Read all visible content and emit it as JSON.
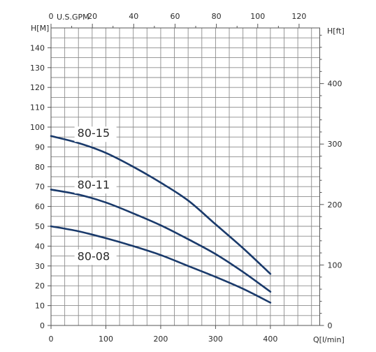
{
  "chart_data": {
    "type": "line",
    "title": "",
    "xlabel": "Q[l/min]",
    "ylabel": "H[M]",
    "ylabel_right": "H[ft]",
    "xlabel_top": "U.S.GPM",
    "xlim": [
      0,
      490
    ],
    "ylim": [
      0,
      150
    ],
    "xlim_top": [
      0,
      130
    ],
    "ylim_right": [
      0,
      492
    ],
    "x_ticks": [
      0,
      100,
      200,
      300,
      400
    ],
    "y_ticks": [
      0,
      10,
      20,
      30,
      40,
      50,
      60,
      70,
      80,
      90,
      100,
      110,
      120,
      130,
      140
    ],
    "x_ticks_top": [
      0,
      20,
      40,
      60,
      80,
      100,
      120
    ],
    "y_ticks_right": [
      0,
      100,
      200,
      300,
      400
    ],
    "grid": true,
    "series": [
      {
        "name": "80-15",
        "x": [
          0,
          50,
          100,
          150,
          200,
          250,
          300,
          350,
          400
        ],
        "values": [
          95.5,
          92,
          87,
          80,
          72,
          63,
          51,
          39,
          26
        ]
      },
      {
        "name": "80-11",
        "x": [
          0,
          50,
          100,
          150,
          200,
          250,
          300,
          350,
          400
        ],
        "values": [
          68.5,
          66,
          62,
          56.5,
          50.5,
          43.5,
          36,
          27,
          17
        ]
      },
      {
        "name": "80-08",
        "x": [
          0,
          50,
          100,
          150,
          200,
          250,
          300,
          350,
          400
        ],
        "values": [
          50,
          47.5,
          44,
          40,
          35.5,
          30,
          24.5,
          18.5,
          11.5
        ]
      }
    ]
  }
}
